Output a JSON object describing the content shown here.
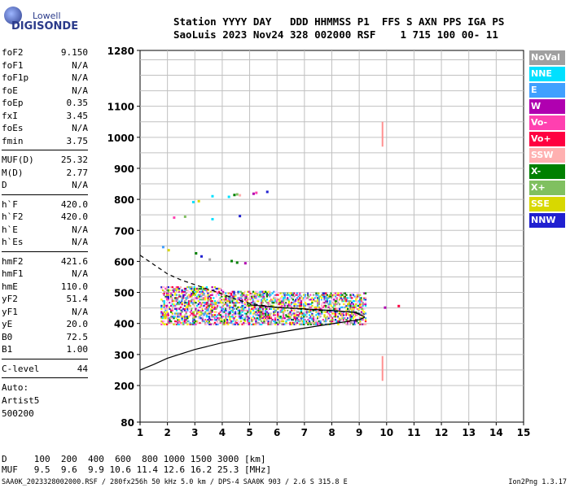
{
  "logo": {
    "company": "Lowell",
    "product": "DIGISONDE"
  },
  "header": {
    "line1": "Station YYYY DAY   DDD HHMMSS P1  FFS S AXN PPS IGA PS",
    "line2": "SaoLuis 2023 Nov24 328 002000 RSF    1 715 100 00- 11"
  },
  "params_group1": [
    {
      "key": "foF2",
      "value": "9.150"
    },
    {
      "key": "foF1",
      "value": "N/A"
    },
    {
      "key": "foF1p",
      "value": "N/A"
    },
    {
      "key": "foE",
      "value": "N/A"
    },
    {
      "key": "foEp",
      "value": "0.35"
    },
    {
      "key": "fxI",
      "value": "3.45"
    },
    {
      "key": "foEs",
      "value": "N/A"
    },
    {
      "key": "fmin",
      "value": "3.75"
    }
  ],
  "params_group2": [
    {
      "key": "MUF(D)",
      "value": "25.32"
    },
    {
      "key": "M(D)",
      "value": "2.77"
    },
    {
      "key": "D",
      "value": "N/A"
    }
  ],
  "params_group3": [
    {
      "key": "h`F",
      "value": "420.0"
    },
    {
      "key": "h`F2",
      "value": "420.0"
    },
    {
      "key": "h`E",
      "value": "N/A"
    },
    {
      "key": "h`Es",
      "value": "N/A"
    }
  ],
  "params_group4": [
    {
      "key": "hmF2",
      "value": "421.6"
    },
    {
      "key": "hmF1",
      "value": "N/A"
    },
    {
      "key": "hmE",
      "value": "110.0"
    },
    {
      "key": "yF2",
      "value": "51.4"
    },
    {
      "key": "yF1",
      "value": "N/A"
    },
    {
      "key": "yE",
      "value": "20.0"
    },
    {
      "key": "B0",
      "value": "72.5"
    },
    {
      "key": "B1",
      "value": "1.00"
    }
  ],
  "params_group5": [
    {
      "key": "C-level",
      "value": "44"
    }
  ],
  "auto": {
    "line1": "Auto:",
    "line2": "Artist5",
    "line3": "500200"
  },
  "legend": [
    {
      "label": "NoVal",
      "color": "#a0a0a0"
    },
    {
      "label": "NNE",
      "color": "#00e0ff"
    },
    {
      "label": "E",
      "color": "#40a0ff"
    },
    {
      "label": "W",
      "color": "#b000b0"
    },
    {
      "label": "Vo-",
      "color": "#ff40b0"
    },
    {
      "label": "Vo+",
      "color": "#ff0040"
    },
    {
      "label": "SSW",
      "color": "#ffb0b0"
    },
    {
      "label": "X-",
      "color": "#008000"
    },
    {
      "label": "X+",
      "color": "#80c060"
    },
    {
      "label": "SSE",
      "color": "#d8d800"
    },
    {
      "label": "NNW",
      "color": "#2020d0"
    }
  ],
  "footer": {
    "d_row": "D     100  200  400  600  800 1000 1500 3000 [km]",
    "muf_row": "MUF   9.5  9.6  9.9 10.6 11.4 12.6 16.2 25.3 [MHz]",
    "file_line": "SAA0K_2023328002000.RSF / 280fx256h 50 kHz 5.0 km / DPS-4 SAA0K 903 / 2.6 S 315.8 E",
    "version": "Ion2Png 1.3.17"
  },
  "chart_data": {
    "type": "scatter",
    "x_ticks": [
      "1",
      "2",
      "3",
      "4",
      "5",
      "6",
      "7",
      "8",
      "9",
      "10",
      "11",
      "12",
      "13",
      "14",
      "15"
    ],
    "y_ticks": [
      "80",
      "200",
      "300",
      "400",
      "500",
      "600",
      "700",
      "800",
      "900",
      "1000",
      "1100",
      "1280"
    ],
    "xlim": [
      1,
      15
    ],
    "ylim": [
      80,
      1280
    ],
    "grid": true,
    "dashed_profile": [
      [
        1.0,
        620
      ],
      [
        1.5,
        590
      ],
      [
        2.0,
        560
      ],
      [
        2.5,
        540
      ],
      [
        3.0,
        525
      ],
      [
        3.5,
        510
      ],
      [
        4.0,
        495
      ],
      [
        4.5,
        478
      ],
      [
        5.0,
        465
      ],
      [
        5.5,
        458
      ],
      [
        6.0,
        452
      ],
      [
        7.0,
        446
      ],
      [
        8.0,
        440
      ],
      [
        8.7,
        437
      ],
      [
        9.2,
        430
      ]
    ],
    "solid_curve_lower": [
      [
        1.0,
        250
      ],
      [
        1.5,
        268
      ],
      [
        2.0,
        288
      ],
      [
        3.0,
        316
      ],
      [
        4.0,
        338
      ],
      [
        5.0,
        355
      ],
      [
        6.0,
        370
      ],
      [
        7.0,
        385
      ],
      [
        8.0,
        399
      ],
      [
        9.0,
        412
      ],
      [
        9.2,
        420
      ]
    ],
    "solid_curve_upper": [
      [
        5.0,
        460
      ],
      [
        6.0,
        452
      ],
      [
        7.0,
        447
      ],
      [
        8.0,
        442
      ],
      [
        8.8,
        436
      ],
      [
        9.2,
        422
      ]
    ],
    "pink_verticals": [
      [
        9.85,
        970,
        1050
      ],
      [
        9.85,
        215,
        295
      ]
    ],
    "upper_trace_points": [
      [
        2.9,
        795
      ],
      [
        3.1,
        798
      ],
      [
        3.6,
        814
      ],
      [
        4.2,
        812
      ],
      [
        4.4,
        818
      ],
      [
        4.5,
        820
      ],
      [
        4.6,
        817
      ],
      [
        5.1,
        822
      ],
      [
        5.2,
        825
      ],
      [
        5.6,
        828
      ],
      [
        2.2,
        745
      ],
      [
        2.6,
        748
      ],
      [
        3.6,
        740
      ],
      [
        4.6,
        750
      ],
      [
        1.8,
        650
      ],
      [
        2.0,
        640
      ],
      [
        3.0,
        630
      ],
      [
        3.2,
        620
      ],
      [
        3.5,
        610
      ],
      [
        4.3,
        605
      ],
      [
        4.5,
        600
      ],
      [
        4.8,
        598
      ],
      [
        9.9,
        455
      ],
      [
        10.4,
        460
      ]
    ]
  }
}
